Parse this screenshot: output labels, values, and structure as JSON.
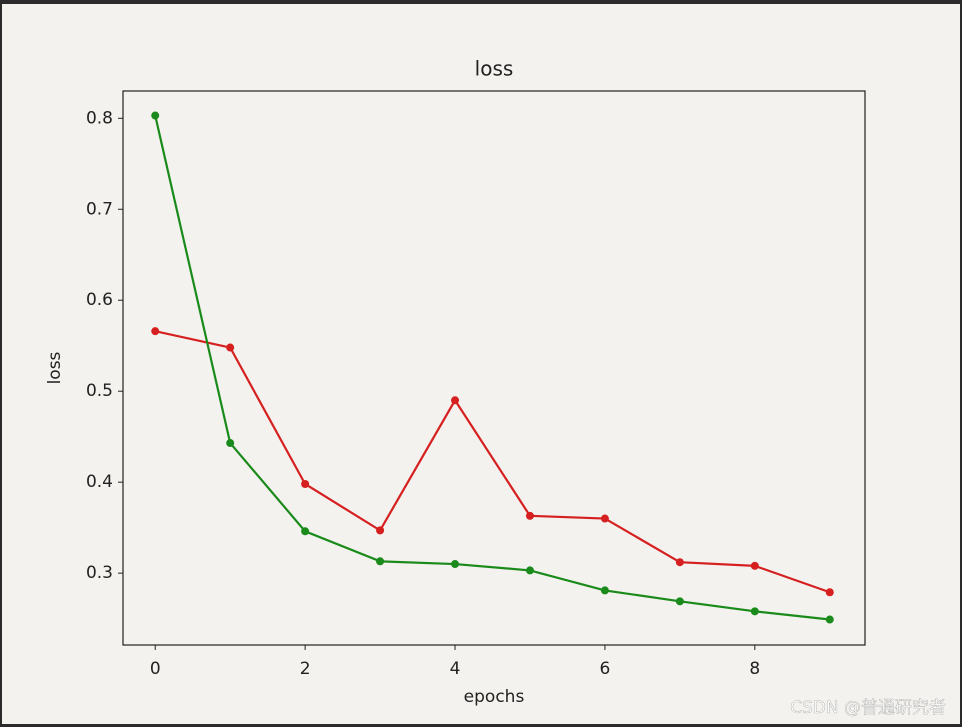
{
  "chart_data": {
    "type": "line",
    "title": "loss",
    "x_label": "epochs",
    "y_label": "loss",
    "x": [
      0,
      1,
      2,
      3,
      4,
      5,
      6,
      7,
      8,
      9
    ],
    "series": [
      {
        "color": "#d62020",
        "values": [
          0.566,
          0.548,
          0.398,
          0.347,
          0.49,
          0.363,
          0.36,
          0.312,
          0.308,
          0.279
        ]
      },
      {
        "color": "#1a8a1a",
        "values": [
          0.803,
          0.443,
          0.346,
          0.313,
          0.31,
          0.303,
          0.281,
          0.269,
          0.258,
          0.249
        ]
      }
    ],
    "xlim": [
      -0.43,
      9.47
    ],
    "ylim": [
      0.221,
      0.83
    ],
    "xticks": [
      0,
      2,
      4,
      6,
      8
    ],
    "yticks": [
      0.3,
      0.4,
      0.5,
      0.6,
      0.7,
      0.8
    ],
    "watermark": "CSDN @普通研究者"
  }
}
